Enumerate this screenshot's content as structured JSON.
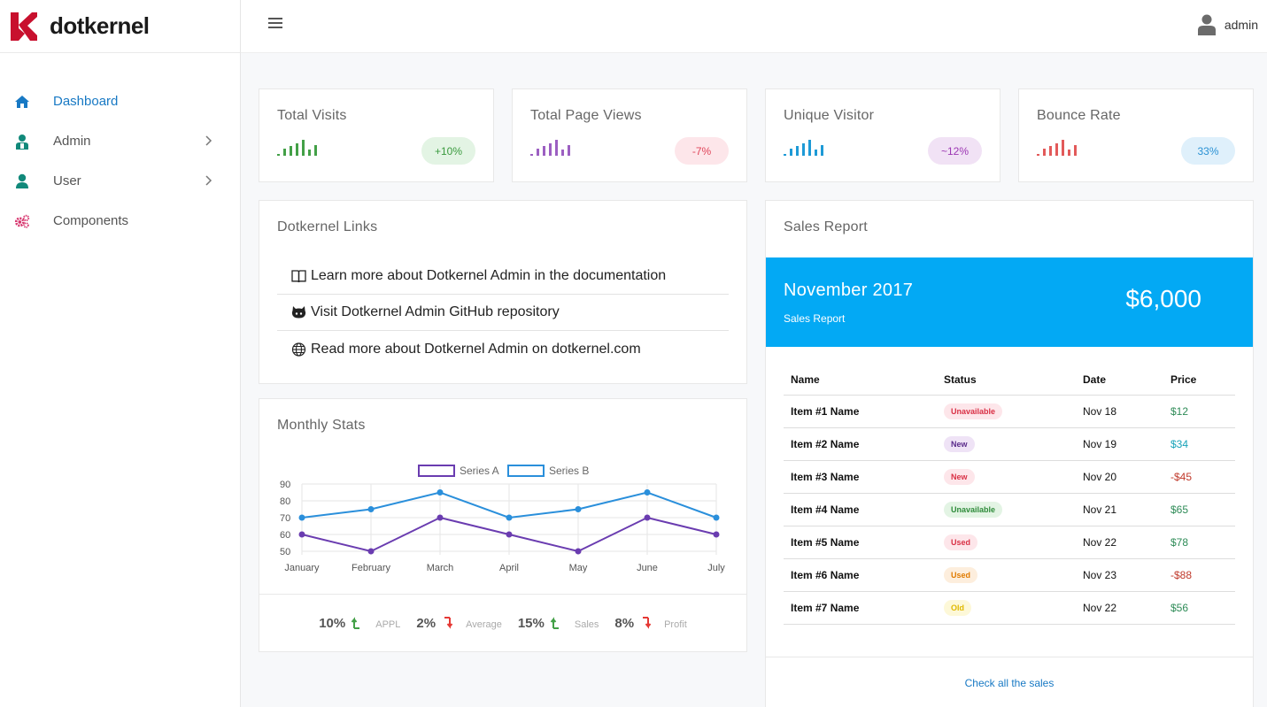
{
  "brand": {
    "name": "dotkernel"
  },
  "sidebar": {
    "items": [
      {
        "label": "Dashboard",
        "active": true,
        "icon": "home-icon"
      },
      {
        "label": "Admin",
        "icon": "admin-icon"
      },
      {
        "label": "User",
        "icon": "user-icon"
      },
      {
        "label": "Components",
        "icon": "cogs-icon"
      }
    ]
  },
  "topbar": {
    "user_name": "admin"
  },
  "stats_cards": [
    {
      "title": "Total Visits",
      "badge": "+10%",
      "color": "#43a047",
      "badge_bg": "#e3f4e4",
      "badge_color": "#3a9a3e"
    },
    {
      "title": "Total Page Views",
      "badge": "-7%",
      "color": "#9c5fc2",
      "badge_bg": "#fde6ea",
      "badge_color": "#e0455a"
    },
    {
      "title": "Unique Visitor",
      "badge": "~12%",
      "color": "#1e9ad6",
      "badge_bg": "#f1e2f5",
      "badge_color": "#9c37b3"
    },
    {
      "title": "Bounce Rate",
      "badge": "33%",
      "color": "#e25a5a",
      "badge_bg": "#dff0fb",
      "badge_color": "#2b92d4"
    }
  ],
  "links_card": {
    "title": "Dotkernel Links",
    "links": [
      {
        "icon": "book-icon",
        "text": "Learn more about Dotkernel Admin in the documentation"
      },
      {
        "icon": "github-icon",
        "text": "Visit Dotkernel Admin GitHub repository"
      },
      {
        "icon": "globe-icon",
        "text": "Read more about Dotkernel Admin on dotkernel.com"
      }
    ]
  },
  "monthly_stats": {
    "title": "Monthly Stats",
    "stats": [
      {
        "value": "10%",
        "direction": "up",
        "label": "APPL"
      },
      {
        "value": "2%",
        "direction": "down",
        "label": "Average"
      },
      {
        "value": "15%",
        "direction": "up",
        "label": "Sales"
      },
      {
        "value": "8%",
        "direction": "down",
        "label": "Profit"
      }
    ]
  },
  "chart_data": {
    "type": "line",
    "categories": [
      "January",
      "February",
      "March",
      "April",
      "May",
      "June",
      "July"
    ],
    "series": [
      {
        "name": "Series A",
        "values": [
          60,
          50,
          70,
          60,
          50,
          70,
          60
        ],
        "color": "#6a3cb0"
      },
      {
        "name": "Series B",
        "values": [
          70,
          75,
          85,
          70,
          75,
          85,
          70
        ],
        "color": "#2a8fdb"
      }
    ],
    "ylim": [
      50,
      90
    ],
    "yticks": [
      50,
      60,
      70,
      80,
      90
    ],
    "grid": true,
    "legend": "top-center"
  },
  "sales_report": {
    "title": "Sales Report",
    "banner": {
      "month": "November 2017",
      "subtitle": "Sales Report",
      "amount": "$6,000",
      "color": "#03a9f4"
    },
    "columns": [
      "Name",
      "Status",
      "Date",
      "Price"
    ],
    "rows": [
      {
        "name": "Item #1 Name",
        "status": "Unavailable",
        "date": "Nov 18",
        "price": "$12",
        "status_bg": "#fde6ea",
        "status_color": "#d93045",
        "price_color": "#2e8b57"
      },
      {
        "name": "Item #2 Name",
        "status": "New",
        "date": "Nov 19",
        "price": "$34",
        "status_bg": "#efe3f6",
        "status_color": "#5a2a8a",
        "price_color": "#17a2b8"
      },
      {
        "name": "Item #3 Name",
        "status": "New",
        "date": "Nov 20",
        "price": "-$45",
        "status_bg": "#fde6ea",
        "status_color": "#d93045",
        "price_color": "#c0392b"
      },
      {
        "name": "Item #4 Name",
        "status": "Unavailable",
        "date": "Nov 21",
        "price": "$65",
        "status_bg": "#e3f4e4",
        "status_color": "#2e8b3a",
        "price_color": "#2e8b57"
      },
      {
        "name": "Item #5 Name",
        "status": "Used",
        "date": "Nov 22",
        "price": "$78",
        "status_bg": "#fde6ea",
        "status_color": "#d93045",
        "price_color": "#2e8b57"
      },
      {
        "name": "Item #6 Name",
        "status": "Used",
        "date": "Nov 23",
        "price": "-$88",
        "status_bg": "#fdeedd",
        "status_color": "#e07b00",
        "price_color": "#c0392b"
      },
      {
        "name": "Item #7 Name",
        "status": "Old",
        "date": "Nov 22",
        "price": "$56",
        "status_bg": "#fdf8d8",
        "status_color": "#e0b800",
        "price_color": "#2e8b57"
      }
    ],
    "footer_link": "Check all the sales"
  }
}
